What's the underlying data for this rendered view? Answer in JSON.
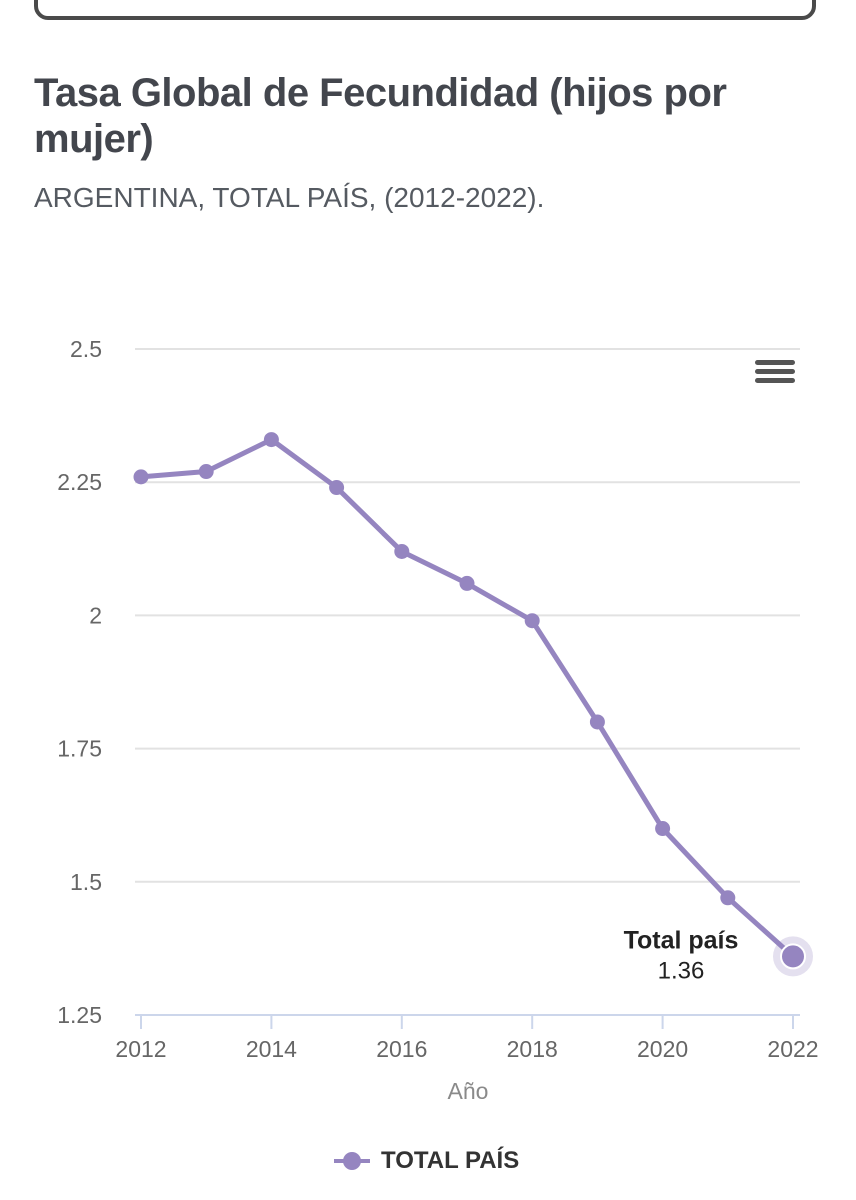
{
  "title": "Tasa Global de Fecundidad (hijos por mujer)",
  "subtitle": "ARGENTINA, TOTAL PAÍS, (2012-2022).",
  "colors": {
    "series": "#9585c0",
    "grid": "#e2e2e2",
    "text": "#43464d"
  },
  "icons": {
    "menu": "hamburger-menu-icon"
  },
  "chart_data": {
    "type": "line",
    "title": "Tasa Global de Fecundidad (hijos por mujer)",
    "subtitle": "ARGENTINA, TOTAL PAÍS, (2012-2022).",
    "xlabel": "Año",
    "ylabel": "",
    "x": [
      2012,
      2013,
      2014,
      2015,
      2016,
      2017,
      2018,
      2019,
      2020,
      2021,
      2022
    ],
    "series": [
      {
        "name": "TOTAL PAÍS",
        "values": [
          2.26,
          2.27,
          2.33,
          2.24,
          2.12,
          2.06,
          1.99,
          1.8,
          1.6,
          1.47,
          1.36
        ]
      }
    ],
    "xlim": [
      2012,
      2022
    ],
    "ylim": [
      1.25,
      2.5
    ],
    "yticks": [
      "1.25",
      "1.5",
      "1.75",
      "2",
      "2.25",
      "2.5"
    ],
    "xticks": [
      "2012",
      "2014",
      "2016",
      "2018",
      "2020",
      "2022"
    ],
    "grid": true,
    "legend": {
      "position": "bottom-center",
      "label": "TOTAL PAÍS"
    },
    "tooltip": {
      "title": "Total país",
      "value": "1.36"
    }
  }
}
